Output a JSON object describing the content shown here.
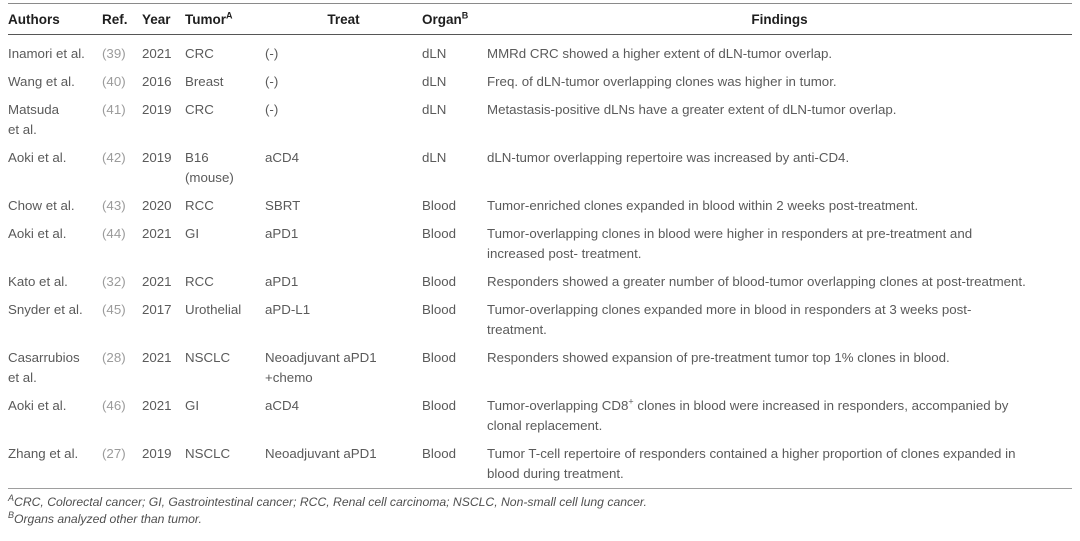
{
  "table": {
    "columns": [
      {
        "label": "Authors",
        "sup": ""
      },
      {
        "label": "Ref.",
        "sup": ""
      },
      {
        "label": "Year",
        "sup": ""
      },
      {
        "label": "Tumor",
        "sup": "A"
      },
      {
        "label": "Treat",
        "sup": ""
      },
      {
        "label": "Organ",
        "sup": "B"
      },
      {
        "label": "Findings",
        "sup": ""
      }
    ],
    "rows": [
      {
        "authors": "Inamori et al.",
        "ref": "(39)",
        "year": "2021",
        "tumor": "CRC",
        "treat": "(-)",
        "organ": "dLN",
        "findings": {
          "pre": "MMRd CRC showed a higher extent of dLN-tumor overlap.",
          "sup": "",
          "post": ""
        }
      },
      {
        "authors": "Wang et al.",
        "ref": "(40)",
        "year": "2016",
        "tumor": "Breast",
        "treat": "(-)",
        "organ": "dLN",
        "findings": {
          "pre": "Freq. of dLN-tumor overlapping clones was higher in tumor.",
          "sup": "",
          "post": ""
        }
      },
      {
        "authors": "Matsuda\net al.",
        "ref": "(41)",
        "year": "2019",
        "tumor": "CRC",
        "treat": "(-)",
        "organ": "dLN",
        "findings": {
          "pre": "Metastasis-positive dLNs have a greater extent of dLN-tumor overlap.",
          "sup": "",
          "post": ""
        }
      },
      {
        "authors": "Aoki et al.",
        "ref": "(42)",
        "year": "2019",
        "tumor": "B16\n(mouse)",
        "treat": "aCD4",
        "organ": "dLN",
        "findings": {
          "pre": "dLN-tumor overlapping repertoire was increased by anti-CD4.",
          "sup": "",
          "post": ""
        }
      },
      {
        "authors": "Chow et al.",
        "ref": "(43)",
        "year": "2020",
        "tumor": "RCC",
        "treat": "SBRT",
        "organ": "Blood",
        "findings": {
          "pre": "Tumor-enriched clones expanded in blood within 2 weeks post-treatment.",
          "sup": "",
          "post": ""
        }
      },
      {
        "authors": "Aoki et al.",
        "ref": "(44)",
        "year": "2021",
        "tumor": "GI",
        "treat": "aPD1",
        "organ": "Blood",
        "findings": {
          "pre": "Tumor-overlapping clones in blood were higher in responders at pre-treatment and\nincreased post- treatment.",
          "sup": "",
          "post": ""
        }
      },
      {
        "authors": "Kato et al.",
        "ref": "(32)",
        "year": "2021",
        "tumor": "RCC",
        "treat": "aPD1",
        "organ": "Blood",
        "findings": {
          "pre": "Responders showed a greater number of blood-tumor overlapping clones at post-treatment.",
          "sup": "",
          "post": ""
        }
      },
      {
        "authors": "Snyder et al.",
        "ref": "(45)",
        "year": "2017",
        "tumor": "Urothelial",
        "treat": "aPD-L1",
        "organ": "Blood",
        "findings": {
          "pre": "Tumor-overlapping clones expanded more in blood in responders at 3 weeks post-\ntreatment.",
          "sup": "",
          "post": ""
        }
      },
      {
        "authors": "Casarrubios\net al.",
        "ref": "(28)",
        "year": "2021",
        "tumor": "NSCLC",
        "treat": "Neoadjuvant aPD1\n+chemo",
        "organ": "Blood",
        "findings": {
          "pre": "Responders showed expansion of pre-treatment tumor top 1% clones in blood.",
          "sup": "",
          "post": ""
        }
      },
      {
        "authors": "Aoki et al.",
        "ref": "(46)",
        "year": "2021",
        "tumor": "GI",
        "treat": "aCD4",
        "organ": "Blood",
        "findings": {
          "pre": "Tumor-overlapping CD8",
          "sup": "+",
          "post": " clones in blood were increased in responders, accompanied by\nclonal replacement."
        }
      },
      {
        "authors": "Zhang et al.",
        "ref": "(27)",
        "year": "2019",
        "tumor": "NSCLC",
        "treat": "Neoadjuvant aPD1",
        "organ": "Blood",
        "findings": {
          "pre": "Tumor T-cell repertoire of responders contained a higher proportion of clones expanded in\nblood during treatment.",
          "sup": "",
          "post": ""
        }
      }
    ]
  },
  "footnotes": [
    {
      "marker": "A",
      "text": "CRC, Colorectal cancer; GI, Gastrointestinal cancer; RCC, Renal cell carcinoma; NSCLC, Non-small cell lung cancer."
    },
    {
      "marker": "B",
      "text": "Organs analyzed other than tumor."
    }
  ],
  "colors": {
    "header_text": "#1e1e1e",
    "body_text": "#5a5a5a",
    "ref_text": "#9b9b9b",
    "rule": "#8a8a8a"
  }
}
